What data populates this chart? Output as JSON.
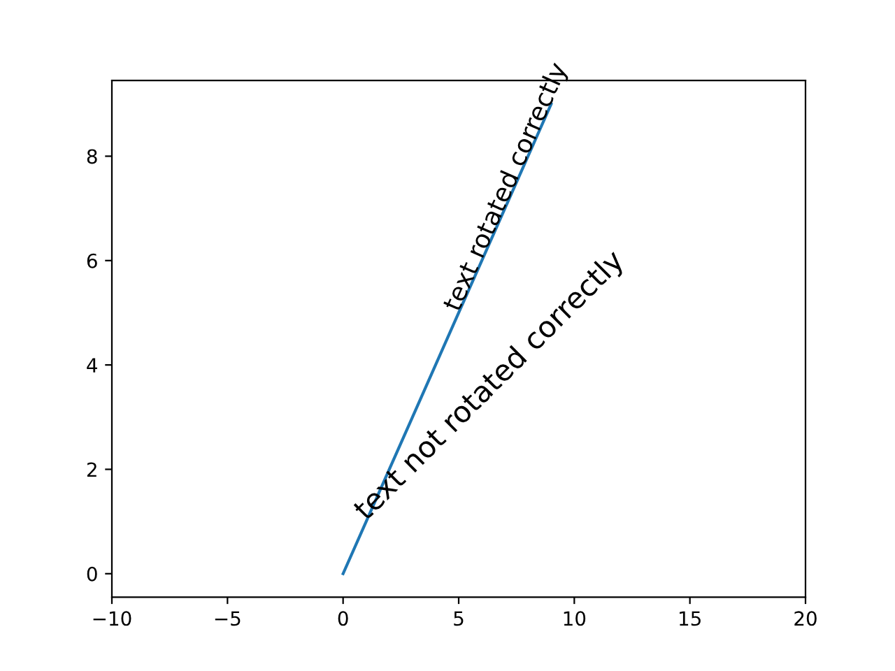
{
  "chart_data": {
    "type": "line",
    "x": [
      0,
      1,
      2,
      3,
      4,
      5,
      6,
      7,
      8,
      9
    ],
    "series": [
      {
        "color": "#1f77b4",
        "values": [
          0,
          1,
          2,
          3,
          4,
          5,
          6,
          7,
          8,
          9
        ]
      }
    ],
    "xlim": [
      -10,
      20
    ],
    "xticks": [
      {
        "value": -10,
        "label": "−10"
      },
      {
        "value": -5,
        "label": "−5"
      },
      0,
      5,
      10,
      15,
      20
    ],
    "ylim": [
      -0.45,
      9.45
    ],
    "yticks": [
      0,
      2,
      4,
      6,
      8
    ],
    "grid": false,
    "annotations": [
      {
        "text": "text not rotated correctly",
        "x": 1,
        "y": 1
      },
      {
        "text": "text rotated correctly",
        "x": 5,
        "y": 5
      }
    ]
  }
}
